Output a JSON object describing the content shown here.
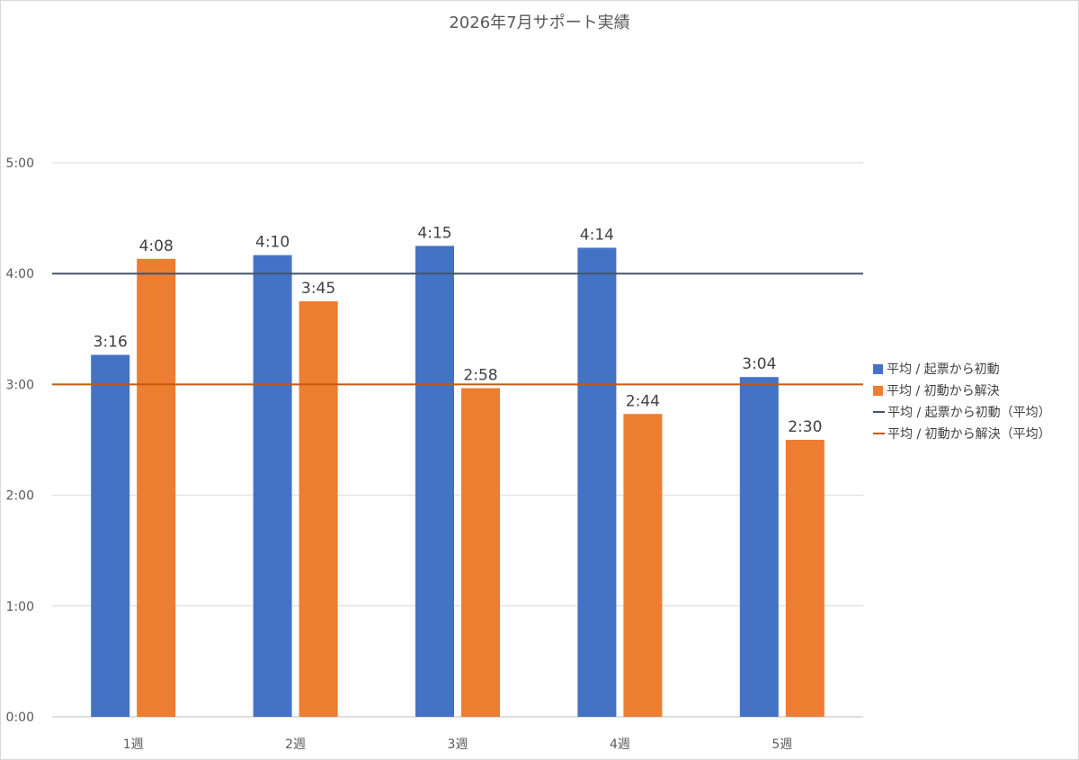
{
  "chart_data": {
    "type": "bar",
    "title": "2026年7月サポート実績",
    "categories": [
      "1週",
      "2週",
      "3週",
      "4週",
      "5週"
    ],
    "y_ticks": [
      "0:00",
      "1:00",
      "2:00",
      "3:00",
      "4:00",
      "5:00"
    ],
    "ylim_minutes": [
      0,
      300
    ],
    "grid": true,
    "legend_position": "right",
    "series": [
      {
        "name": "平均 / 起票から初動",
        "color": "#4472C4",
        "values_minutes": [
          196,
          250,
          255,
          254,
          184
        ],
        "labels": [
          "3:16",
          "4:10",
          "4:15",
          "4:14",
          "3:04"
        ]
      },
      {
        "name": "平均 / 初動から解決",
        "color": "#ED7D31",
        "values_minutes": [
          248,
          225,
          178,
          164,
          150
        ],
        "labels": [
          "4:08",
          "3:45",
          "2:58",
          "2:44",
          "2:30"
        ]
      }
    ],
    "reference_lines": [
      {
        "name": "平均 / 起票から初動（平均）",
        "color": "#44546A",
        "value_minutes": 240
      },
      {
        "name": "平均 / 初動から解決（平均）",
        "color": "#C55A11",
        "value_minutes": 180
      }
    ]
  }
}
